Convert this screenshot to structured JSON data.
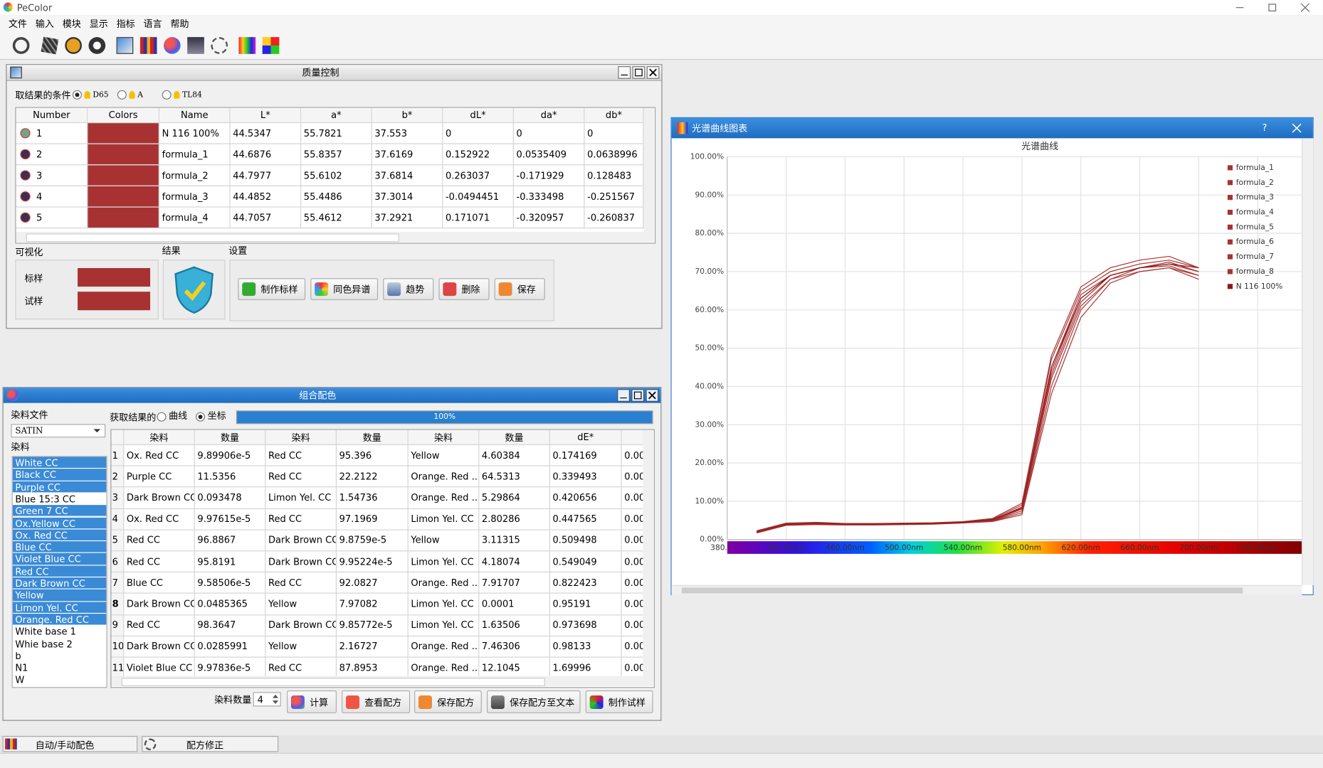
{
  "app": {
    "title": "PeColor",
    "menu": [
      "文件",
      "输入",
      "模块",
      "显示",
      "指标",
      "语言",
      "帮助"
    ]
  },
  "qc": {
    "title": "质量控制",
    "condition_label": "取结果的条件",
    "illuminants": [
      "D65",
      "A",
      "TL84"
    ],
    "table": {
      "headers": [
        "Number",
        "Colors",
        "Name",
        "L*",
        "a*",
        "b*",
        "dL*",
        "da*",
        "db*"
      ],
      "rows": [
        [
          "1",
          "N 116 100%",
          "44.5347",
          "55.7821",
          "37.553",
          "0",
          "0",
          "0"
        ],
        [
          "2",
          "formula_1",
          "44.6876",
          "55.8357",
          "37.6169",
          "0.152922",
          "0.0535409",
          "0.0638996"
        ],
        [
          "3",
          "formula_2",
          "44.7977",
          "55.6102",
          "37.6814",
          "0.263037",
          "-0.171929",
          "0.128483"
        ],
        [
          "4",
          "formula_3",
          "44.4852",
          "55.4486",
          "37.3014",
          "-0.0494451",
          "-0.333498",
          "-0.251567"
        ],
        [
          "5",
          "formula_4",
          "44.7057",
          "55.4612",
          "37.2921",
          "0.171071",
          "-0.320957",
          "-0.260837"
        ]
      ]
    },
    "sections": [
      "可视化",
      "结果",
      "设置"
    ],
    "standard_label": "标样",
    "sample_label": "试样",
    "buttons": [
      "制作标样",
      "同色异谱",
      "趋势",
      "删除",
      "保存"
    ]
  },
  "combo": {
    "title": "组合配色",
    "dye_file_label": "染料文件",
    "dye_file": "SATIN",
    "dyes_label": "染料",
    "dyes": [
      {
        "name": "White CC",
        "selected": true
      },
      {
        "name": "Black CC",
        "selected": true
      },
      {
        "name": "Purple CC",
        "selected": true
      },
      {
        "name": "Blue 15:3 CC",
        "selected": false
      },
      {
        "name": "Green 7 CC",
        "selected": true
      },
      {
        "name": "Ox.Yellow CC",
        "selected": true
      },
      {
        "name": "Ox. Red CC",
        "selected": true
      },
      {
        "name": "Blue CC",
        "selected": true
      },
      {
        "name": "Violet Blue CC",
        "selected": true
      },
      {
        "name": "Red CC",
        "selected": true
      },
      {
        "name": "Dark Brown CC",
        "selected": true
      },
      {
        "name": "Yellow",
        "selected": true
      },
      {
        "name": "Limon Yel. CC",
        "selected": true
      },
      {
        "name": "Orange. Red CC",
        "selected": true
      },
      {
        "name": "White base 1",
        "selected": false
      },
      {
        "name": "Whie base 2",
        "selected": false
      },
      {
        "name": "b",
        "selected": false
      },
      {
        "name": "N1",
        "selected": false
      },
      {
        "name": "W",
        "selected": false
      }
    ],
    "get_result_label": "获取结果的",
    "options": [
      "曲线",
      "坐标"
    ],
    "progress": {
      "value": 100,
      "label": "100%"
    },
    "table": {
      "headers": [
        "染料",
        "数量",
        "染料",
        "数量",
        "染料",
        "数量",
        "dE*"
      ],
      "rows": [
        [
          "1",
          "Ox. Red CC",
          "9.89906e-5",
          "Red CC",
          "95.396",
          "Yellow",
          "4.60384",
          "0.174169",
          "0.00"
        ],
        [
          "2",
          "Purple CC",
          "11.5356",
          "Red CC",
          "22.2122",
          "Orange. Red ...",
          "64.5313",
          "0.339493",
          "0.00"
        ],
        [
          "3",
          "Dark Brown CC",
          "0.093478",
          "Limon Yel. CC",
          "1.54736",
          "Orange. Red ...",
          "5.29864",
          "0.420656",
          "0.00"
        ],
        [
          "4",
          "Ox. Red CC",
          "9.97615e-5",
          "Red CC",
          "97.1969",
          "Limon Yel. CC",
          "2.80286",
          "0.447565",
          "0.00"
        ],
        [
          "5",
          "Red CC",
          "96.8867",
          "Dark Brown CC",
          "9.8759e-5",
          "Yellow",
          "3.11315",
          "0.509498",
          "0.00"
        ],
        [
          "6",
          "Red CC",
          "95.8191",
          "Dark Brown CC",
          "9.95224e-5",
          "Limon Yel. CC",
          "4.18074",
          "0.549049",
          "0.00"
        ],
        [
          "7",
          "Blue CC",
          "9.58506e-5",
          "Red CC",
          "92.0827",
          "Orange. Red ...",
          "7.91707",
          "0.822423",
          "0.00"
        ],
        [
          "8",
          "Dark Brown CC",
          "0.0485365",
          "Yellow",
          "7.97082",
          "Limon Yel. CC",
          "0.0001",
          "0.95191",
          "0.00"
        ],
        [
          "9",
          "Red CC",
          "98.3647",
          "Dark Brown CC",
          "9.85772e-5",
          "Limon Yel. CC",
          "1.63506",
          "0.973698",
          "0.00"
        ],
        [
          "10",
          "Dark Brown CC",
          "0.0285991",
          "Yellow",
          "2.16727",
          "Orange. Red ...",
          "7.46306",
          "0.98133",
          "0.00"
        ],
        [
          "11",
          "Violet Blue CC",
          "9.97836e-5",
          "Red CC",
          "87.8953",
          "Orange. Red ...",
          "12.1045",
          "1.69996",
          "0.00"
        ]
      ]
    },
    "dye_count_label": "染料数量",
    "dye_count": "4",
    "buttons": [
      "计算",
      "查看配方",
      "保存配方",
      "保存配方至文本",
      "制作试样"
    ]
  },
  "spectral_window": {
    "title": "光谱曲线图表",
    "help": "?"
  },
  "tabs": [
    "自动/手动配色",
    "配方修正"
  ],
  "chart_data": {
    "type": "line",
    "title": "光谱曲线",
    "x": [
      400,
      420,
      440,
      460,
      480,
      500,
      520,
      540,
      560,
      580,
      600,
      620,
      640,
      660,
      680,
      700
    ],
    "xlim": [
      380,
      770
    ],
    "xticks": [
      {
        "value": 380,
        "label": "380."
      },
      {
        "value": 420,
        "label": "420.00nm"
      },
      {
        "value": 460,
        "label": "460.00nm"
      },
      {
        "value": 500,
        "label": "500.00nm"
      },
      {
        "value": 540,
        "label": "540.00nm"
      },
      {
        "value": 580,
        "label": "580.00nm"
      },
      {
        "value": 620,
        "label": "620.00nm"
      },
      {
        "value": 660,
        "label": "660.00nm"
      },
      {
        "value": 700,
        "label": "700.00nm"
      },
      {
        "value": 740,
        "label": "740.00nm"
      }
    ],
    "ylim": [
      0,
      100
    ],
    "yticks": [
      {
        "value": 0,
        "label": "0.00%"
      },
      {
        "value": 10,
        "label": "10.00%"
      },
      {
        "value": 20,
        "label": "20.00%"
      },
      {
        "value": 30,
        "label": "30.00%"
      },
      {
        "value": 40,
        "label": "40.00%"
      },
      {
        "value": 50,
        "label": "50.00%"
      },
      {
        "value": 60,
        "label": "60.00%"
      },
      {
        "value": 70,
        "label": "70.00%"
      },
      {
        "value": 80,
        "label": "80.00%"
      },
      {
        "value": 90,
        "label": "90.00%"
      },
      {
        "value": 100,
        "label": "100.00%"
      }
    ],
    "grid": true,
    "legend": "top-right",
    "series": [
      {
        "name": "formula_1",
        "color": "#a83232",
        "values": [
          2,
          4,
          4.2,
          4,
          4,
          4.1,
          4.2,
          4.5,
          5,
          8,
          44,
          63,
          69,
          71,
          72,
          70
        ]
      },
      {
        "name": "formula_2",
        "color": "#a83232",
        "values": [
          2.2,
          4.2,
          4.4,
          4.1,
          4.1,
          4.2,
          4.3,
          4.6,
          5.3,
          9,
          47,
          65,
          70,
          72,
          73,
          71
        ]
      },
      {
        "name": "formula_3",
        "color": "#a83232",
        "values": [
          1.8,
          3.8,
          4,
          3.9,
          3.9,
          4,
          4.1,
          4.4,
          4.8,
          7,
          40,
          60,
          68,
          70,
          71,
          69
        ]
      },
      {
        "name": "formula_4",
        "color": "#a83232",
        "values": [
          2.1,
          4.1,
          4.3,
          4,
          4.1,
          4.1,
          4.2,
          4.5,
          5.1,
          8.5,
          45,
          64,
          69,
          71,
          72.5,
          70
        ]
      },
      {
        "name": "formula_5",
        "color": "#a83232",
        "values": [
          1.9,
          3.9,
          4.1,
          3.9,
          4,
          4,
          4.1,
          4.4,
          4.9,
          7.5,
          42,
          61,
          68,
          71,
          71.5,
          69
        ]
      },
      {
        "name": "formula_6",
        "color": "#a83232",
        "values": [
          2.3,
          4.3,
          4.5,
          4.2,
          4.2,
          4.3,
          4.4,
          4.7,
          5.5,
          9.5,
          48,
          66,
          71,
          73,
          74,
          71
        ]
      },
      {
        "name": "formula_7",
        "color": "#a83232",
        "values": [
          2,
          4,
          4.2,
          4,
          4,
          4.1,
          4.2,
          4.5,
          5,
          8,
          43,
          62,
          69,
          71,
          72,
          70
        ]
      },
      {
        "name": "formula_8",
        "color": "#a83232",
        "values": [
          1.7,
          3.7,
          3.9,
          3.8,
          3.8,
          3.9,
          4,
          4.3,
          4.7,
          6.5,
          38,
          58,
          67,
          70,
          71,
          68
        ]
      },
      {
        "name": "N 116 100%",
        "color": "#8b1a1a",
        "values": [
          2,
          4,
          4.2,
          4,
          4,
          4.1,
          4.2,
          4.5,
          5.2,
          8.2,
          45,
          63,
          69,
          71,
          72,
          71
        ]
      }
    ]
  }
}
